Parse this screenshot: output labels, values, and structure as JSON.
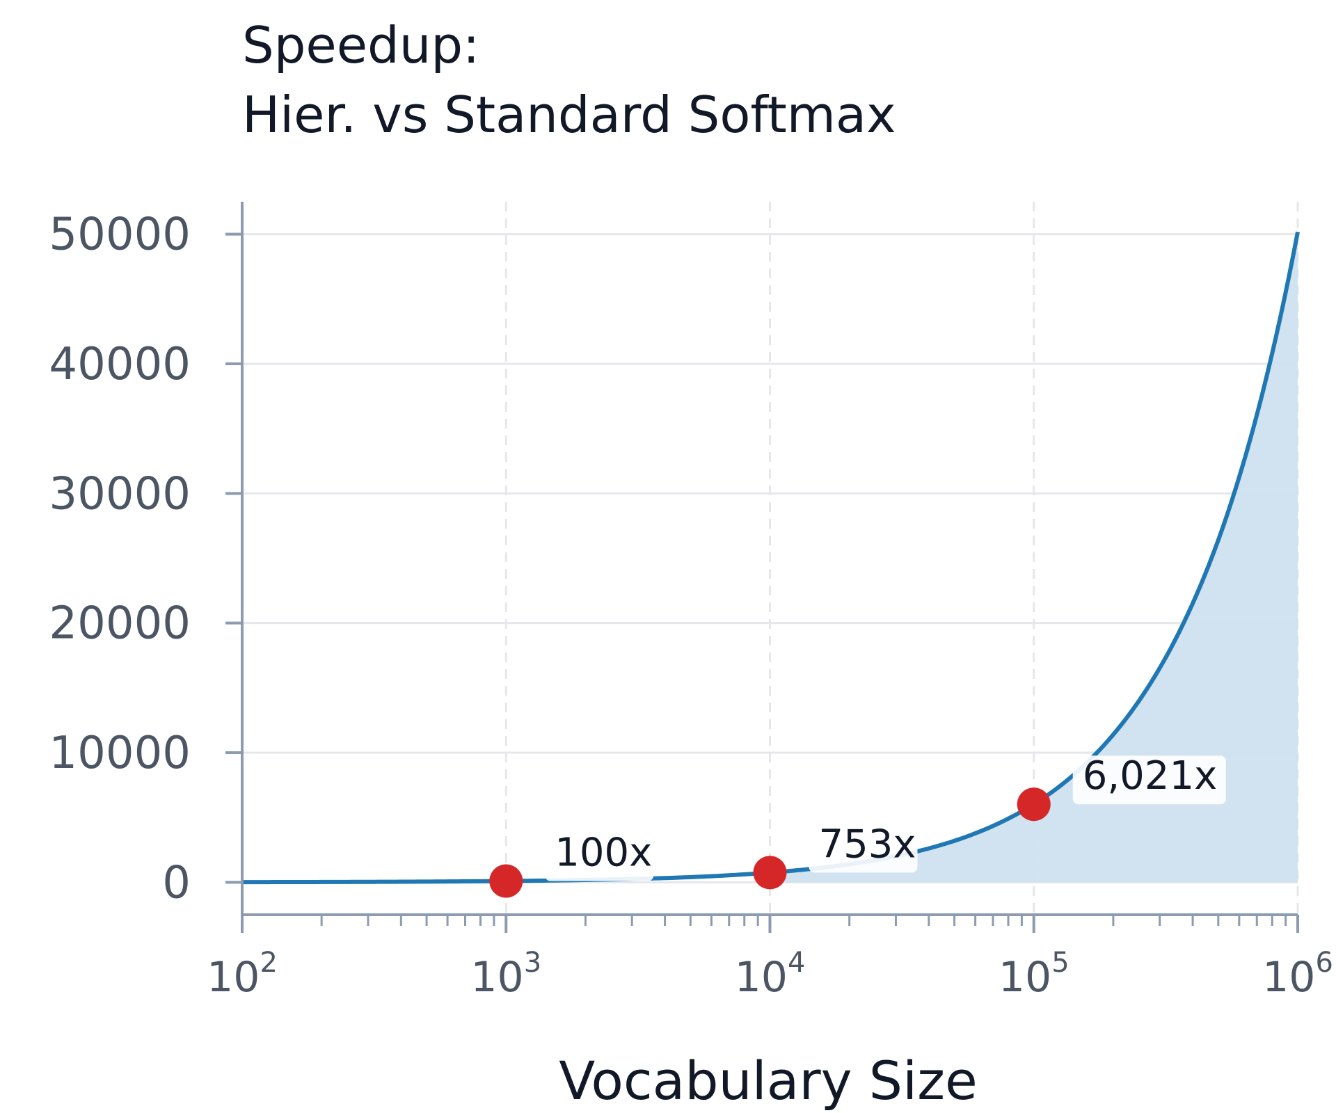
{
  "chart_data": {
    "type": "area",
    "title_line1": "Speedup:",
    "title_line2": "Hier. vs Standard Softmax",
    "xlabel": "Vocabulary Size",
    "ylabel": "",
    "xscale": "log",
    "xlim": [
      100,
      1000000
    ],
    "ylim": [
      -2500,
      52500
    ],
    "x_tick_bases": [
      "10",
      "10",
      "10",
      "10",
      "10"
    ],
    "x_tick_exponents": [
      "2",
      "3",
      "4",
      "5",
      "6"
    ],
    "y_ticks": [
      "0",
      "10000",
      "20000",
      "30000",
      "40000",
      "50000"
    ],
    "grid": true,
    "colors": {
      "line": "#1f77b4",
      "fill": "#cfe0ef",
      "marker": "#d62728",
      "grid": "#e5e7eb",
      "axis": "#8c9bb0"
    },
    "series": [
      {
        "x": [
          100,
          200,
          500,
          1000,
          2000,
          5000,
          10000,
          20000,
          50000,
          100000,
          200000,
          500000,
          1000000
        ],
        "y": [
          15,
          26,
          56,
          100,
          182,
          400,
          753,
          1400,
          3200,
          6021,
          11400,
          26400,
          50171
        ]
      }
    ],
    "annotations": [
      {
        "x": 1000,
        "y": 100,
        "label": "100x"
      },
      {
        "x": 10000,
        "y": 753,
        "label": "753x"
      },
      {
        "x": 100000,
        "y": 6021,
        "label": "6,021x"
      }
    ]
  }
}
